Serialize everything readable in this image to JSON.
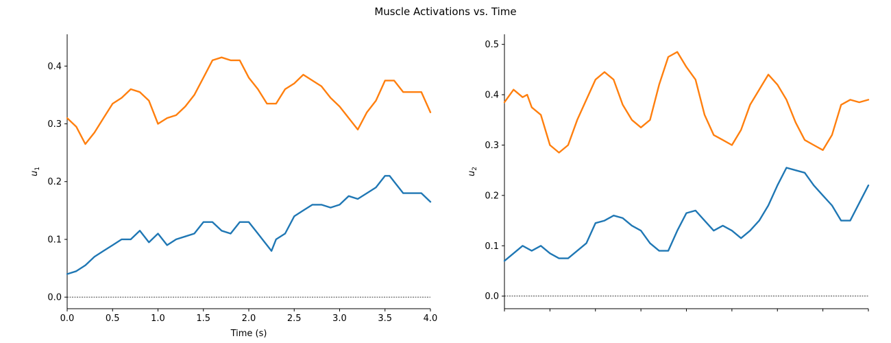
{
  "figure": {
    "title": "Muscle Activations vs. Time"
  },
  "colors": {
    "series1": "#1f77b4",
    "series2": "#ff7f0e",
    "zero_line": "#000000"
  },
  "chart_data": [
    {
      "type": "line",
      "xlabel": "Time (s)",
      "ylabel": "u_1",
      "ylabel_display": {
        "base": "u",
        "sub": "1"
      },
      "xlim": [
        0,
        4
      ],
      "ylim": [
        -0.02,
        0.455
      ],
      "xticks": [
        0,
        0.5,
        1,
        1.5,
        2,
        2.5,
        3,
        3.5,
        4
      ],
      "xtick_labels": [
        "0.0",
        "0.5",
        "1.0",
        "1.5",
        "2.0",
        "2.5",
        "3.0",
        "3.5",
        "4.0"
      ],
      "yticks": [
        0,
        0.1,
        0.2,
        0.3,
        0.4
      ],
      "ytick_labels": [
        "0.0",
        "0.1",
        "0.2",
        "0.3",
        "0.4"
      ],
      "hline": 0,
      "grid": false,
      "series": [
        {
          "color": "#1f77b4",
          "x": [
            0,
            0.1,
            0.2,
            0.3,
            0.4,
            0.5,
            0.6,
            0.7,
            0.8,
            0.9,
            1.0,
            1.1,
            1.2,
            1.3,
            1.4,
            1.5,
            1.6,
            1.7,
            1.8,
            1.9,
            2.0,
            2.1,
            2.2,
            2.25,
            2.3,
            2.4,
            2.5,
            2.6,
            2.7,
            2.8,
            2.9,
            3.0,
            3.1,
            3.2,
            3.3,
            3.4,
            3.5,
            3.55,
            3.6,
            3.7,
            3.8,
            3.9,
            4.0
          ],
          "y": [
            0.04,
            0.045,
            0.055,
            0.07,
            0.08,
            0.09,
            0.1,
            0.1,
            0.115,
            0.095,
            0.11,
            0.09,
            0.1,
            0.105,
            0.11,
            0.13,
            0.13,
            0.115,
            0.11,
            0.13,
            0.13,
            0.11,
            0.09,
            0.08,
            0.1,
            0.11,
            0.14,
            0.15,
            0.16,
            0.16,
            0.155,
            0.16,
            0.175,
            0.17,
            0.18,
            0.19,
            0.21,
            0.21,
            0.2,
            0.18,
            0.18,
            0.18,
            0.165
          ]
        },
        {
          "color": "#ff7f0e",
          "x": [
            0,
            0.1,
            0.2,
            0.3,
            0.4,
            0.5,
            0.6,
            0.7,
            0.8,
            0.9,
            1.0,
            1.1,
            1.2,
            1.3,
            1.4,
            1.5,
            1.6,
            1.7,
            1.8,
            1.9,
            2.0,
            2.1,
            2.2,
            2.3,
            2.4,
            2.5,
            2.6,
            2.7,
            2.8,
            2.9,
            3.0,
            3.1,
            3.2,
            3.3,
            3.4,
            3.5,
            3.6,
            3.7,
            3.8,
            3.9,
            4.0
          ],
          "y": [
            0.31,
            0.295,
            0.265,
            0.285,
            0.31,
            0.335,
            0.345,
            0.36,
            0.355,
            0.34,
            0.3,
            0.31,
            0.315,
            0.33,
            0.35,
            0.38,
            0.41,
            0.415,
            0.41,
            0.41,
            0.38,
            0.36,
            0.335,
            0.335,
            0.36,
            0.37,
            0.385,
            0.375,
            0.365,
            0.345,
            0.33,
            0.31,
            0.29,
            0.32,
            0.34,
            0.375,
            0.375,
            0.355,
            0.355,
            0.355,
            0.32
          ]
        }
      ]
    },
    {
      "type": "line",
      "xlabel": "",
      "ylabel": "u_2",
      "ylabel_display": {
        "base": "u",
        "sub": "2"
      },
      "xlim": [
        0,
        4
      ],
      "ylim": [
        -0.025,
        0.52
      ],
      "xticks": [
        0,
        0.5,
        1,
        1.5,
        2,
        2.5,
        3,
        3.5,
        4
      ],
      "xtick_labels": [],
      "yticks": [
        0,
        0.1,
        0.2,
        0.3,
        0.4,
        0.5
      ],
      "ytick_labels": [
        "0.0",
        "0.1",
        "0.2",
        "0.3",
        "0.4",
        "0.5"
      ],
      "hline": 0,
      "grid": false,
      "series": [
        {
          "color": "#1f77b4",
          "x": [
            0,
            0.1,
            0.2,
            0.3,
            0.4,
            0.5,
            0.6,
            0.7,
            0.8,
            0.9,
            1.0,
            1.1,
            1.2,
            1.3,
            1.4,
            1.5,
            1.6,
            1.7,
            1.8,
            1.9,
            2.0,
            2.1,
            2.2,
            2.3,
            2.4,
            2.5,
            2.6,
            2.7,
            2.8,
            2.9,
            3.0,
            3.1,
            3.2,
            3.3,
            3.4,
            3.5,
            3.6,
            3.7,
            3.8,
            3.9,
            4.0
          ],
          "y": [
            0.07,
            0.085,
            0.1,
            0.09,
            0.1,
            0.085,
            0.075,
            0.075,
            0.09,
            0.105,
            0.145,
            0.15,
            0.16,
            0.155,
            0.14,
            0.13,
            0.105,
            0.09,
            0.09,
            0.13,
            0.165,
            0.17,
            0.15,
            0.13,
            0.14,
            0.13,
            0.115,
            0.13,
            0.15,
            0.18,
            0.22,
            0.255,
            0.25,
            0.245,
            0.22,
            0.2,
            0.18,
            0.15,
            0.15,
            0.185,
            0.22
          ]
        },
        {
          "color": "#ff7f0e",
          "x": [
            0,
            0.1,
            0.2,
            0.25,
            0.3,
            0.4,
            0.5,
            0.6,
            0.7,
            0.8,
            0.9,
            1.0,
            1.1,
            1.2,
            1.3,
            1.4,
            1.5,
            1.6,
            1.7,
            1.8,
            1.9,
            2.0,
            2.1,
            2.2,
            2.3,
            2.4,
            2.5,
            2.6,
            2.7,
            2.8,
            2.9,
            3.0,
            3.1,
            3.2,
            3.3,
            3.4,
            3.5,
            3.6,
            3.7,
            3.8,
            3.9,
            4.0
          ],
          "y": [
            0.385,
            0.41,
            0.395,
            0.4,
            0.375,
            0.36,
            0.3,
            0.285,
            0.3,
            0.35,
            0.39,
            0.43,
            0.445,
            0.43,
            0.38,
            0.35,
            0.335,
            0.35,
            0.42,
            0.475,
            0.485,
            0.455,
            0.43,
            0.36,
            0.32,
            0.31,
            0.3,
            0.33,
            0.38,
            0.41,
            0.44,
            0.42,
            0.39,
            0.345,
            0.31,
            0.3,
            0.29,
            0.32,
            0.38,
            0.39,
            0.385,
            0.39
          ]
        }
      ]
    }
  ]
}
